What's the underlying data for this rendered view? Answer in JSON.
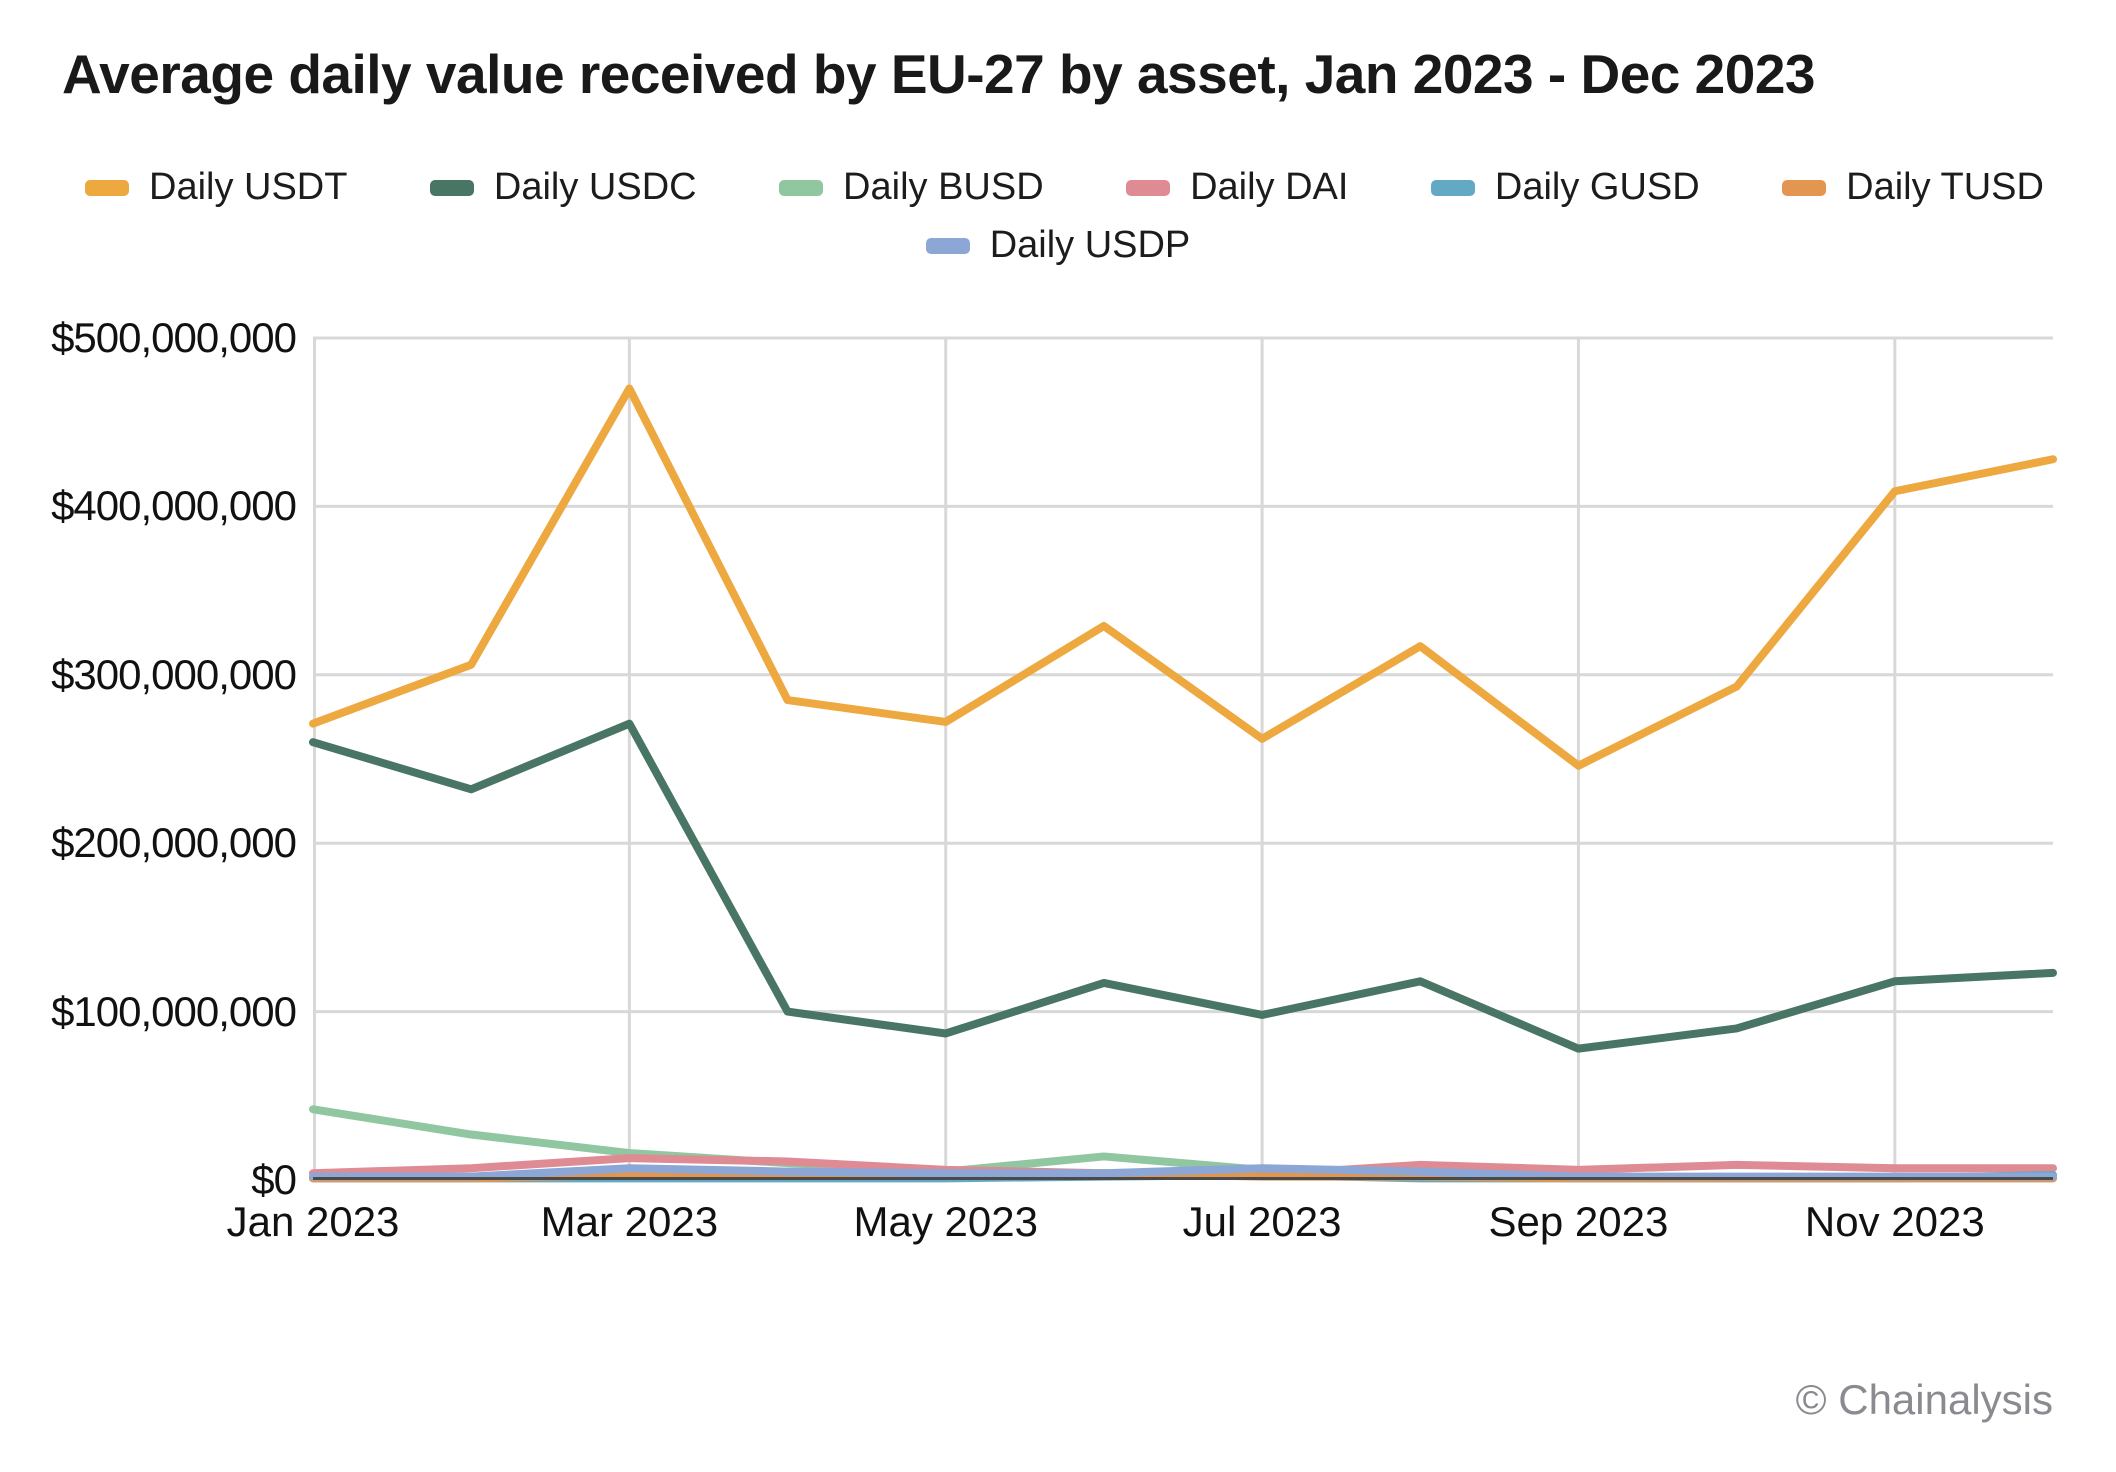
{
  "title": "Average daily value received by EU-27 by asset, Jan 2023 - Dec 2023",
  "watermark": "© Chainalysis",
  "colors": {
    "grid": "#D8D8D8",
    "axis": "#4A4A4A",
    "text": "#111111",
    "watermark": "#8A8A90"
  },
  "chart_data": {
    "type": "line",
    "title": "Average daily value received by EU-27 by asset, Jan 2023 - Dec 2023",
    "xlabel": "",
    "ylabel": "",
    "ylim": [
      0,
      500000000
    ],
    "grid": true,
    "legend_position": "top",
    "categories": [
      "Jan 2023",
      "Feb 2023",
      "Mar 2023",
      "Apr 2023",
      "May 2023",
      "Jun 2023",
      "Jul 2023",
      "Aug 2023",
      "Sep 2023",
      "Oct 2023",
      "Nov 2023",
      "Dec 2023"
    ],
    "x_tick_labels": [
      "Jan 2023",
      "Mar 2023",
      "May 2023",
      "Jul 2023",
      "Sep 2023",
      "Nov 2023"
    ],
    "x_tick_indices": [
      0,
      2,
      4,
      6,
      8,
      10
    ],
    "y_ticks": [
      {
        "value": 500000000,
        "label": "$500,000,000"
      },
      {
        "value": 400000000,
        "label": "$400,000,000"
      },
      {
        "value": 300000000,
        "label": "$300,000,000"
      },
      {
        "value": 200000000,
        "label": "$200,000,000"
      },
      {
        "value": 100000000,
        "label": "$100,000,000"
      },
      {
        "value": 0,
        "label": "$0"
      }
    ],
    "series": [
      {
        "name": "Daily USDT",
        "color": "#EDA83F",
        "values": [
          271000000,
          306000000,
          470000000,
          285000000,
          272000000,
          329000000,
          262000000,
          317000000,
          246000000,
          293000000,
          409000000,
          428000000
        ]
      },
      {
        "name": "Daily USDC",
        "color": "#497565",
        "values": [
          260000000,
          232000000,
          271000000,
          100000000,
          87000000,
          117000000,
          98000000,
          118000000,
          78000000,
          90000000,
          118000000,
          123000000
        ]
      },
      {
        "name": "Daily BUSD",
        "color": "#90C7A0",
        "values": [
          42000000,
          27000000,
          16000000,
          10000000,
          5000000,
          14000000,
          6000000,
          3000000,
          2000000,
          1000000,
          1000000,
          1000000
        ]
      },
      {
        "name": "Daily DAI",
        "color": "#DE8B94",
        "values": [
          4000000,
          7000000,
          13000000,
          11000000,
          6000000,
          4000000,
          3000000,
          9000000,
          6000000,
          9000000,
          7000000,
          7000000
        ]
      },
      {
        "name": "Daily GUSD",
        "color": "#64A9C3",
        "values": [
          1000000,
          1000000,
          1000000,
          1000000,
          1000000,
          2000000,
          3000000,
          1000000,
          1000000,
          1000000,
          1000000,
          3000000
        ]
      },
      {
        "name": "Daily TUSD",
        "color": "#E29650",
        "values": [
          1000000,
          1000000,
          3000000,
          3000000,
          3000000,
          4000000,
          2000000,
          2000000,
          1000000,
          1000000,
          1000000,
          1000000
        ]
      },
      {
        "name": "Daily USDP",
        "color": "#8CA6D5",
        "values": [
          2000000,
          2000000,
          7000000,
          5000000,
          4000000,
          4000000,
          7000000,
          5000000,
          2000000,
          2000000,
          2000000,
          2000000
        ]
      }
    ]
  }
}
